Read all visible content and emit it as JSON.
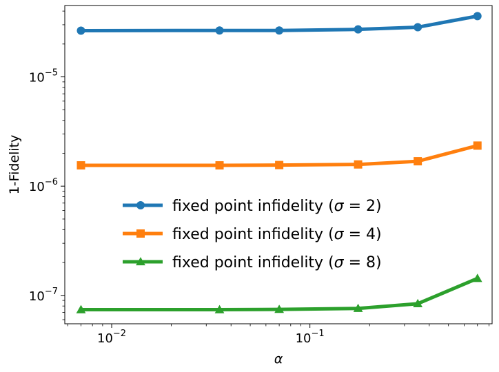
{
  "chart_data": {
    "type": "line",
    "xscale": "log",
    "yscale": "log",
    "xlim": [
      0.0058,
      0.83
    ],
    "ylim": [
      5.5e-08,
      4.5e-05
    ],
    "xlabel": "α",
    "ylabel": "1-Fidelity",
    "x": [
      0.007,
      0.035,
      0.07,
      0.175,
      0.35,
      0.7
    ],
    "x_ticks": [
      {
        "value": 0.01,
        "base": "10",
        "exp": "−2"
      },
      {
        "value": 0.1,
        "base": "10",
        "exp": "−1"
      }
    ],
    "y_ticks": [
      {
        "value": 1e-07,
        "base": "10",
        "exp": "−7"
      },
      {
        "value": 1e-06,
        "base": "10",
        "exp": "−6"
      },
      {
        "value": 1e-05,
        "base": "10",
        "exp": "−5"
      }
    ],
    "grid": false,
    "legend_position": "center-left",
    "series": [
      {
        "name": "fixed point infidelity (σ = 2)",
        "label_prefix": "fixed point infidelity (",
        "label_sym": "σ",
        "label_suffix": " = 2)",
        "color": "#1f77b4",
        "marker": "circle",
        "values": [
          2.65e-05,
          2.66e-05,
          2.66e-05,
          2.72e-05,
          2.85e-05,
          3.6e-05
        ]
      },
      {
        "name": "fixed point infidelity (σ = 4)",
        "label_prefix": "fixed point infidelity (",
        "label_sym": "σ",
        "label_suffix": " = 4)",
        "color": "#ff7f0e",
        "marker": "square",
        "values": [
          1.55e-06,
          1.55e-06,
          1.56e-06,
          1.58e-06,
          1.69e-06,
          2.35e-06
        ]
      },
      {
        "name": "fixed point infidelity (σ = 8)",
        "label_prefix": "fixed point infidelity (",
        "label_sym": "σ",
        "label_suffix": " = 8)",
        "color": "#2ca02c",
        "marker": "triangle",
        "values": [
          7.4e-08,
          7.4e-08,
          7.45e-08,
          7.6e-08,
          8.4e-08,
          1.43e-07
        ]
      }
    ]
  }
}
